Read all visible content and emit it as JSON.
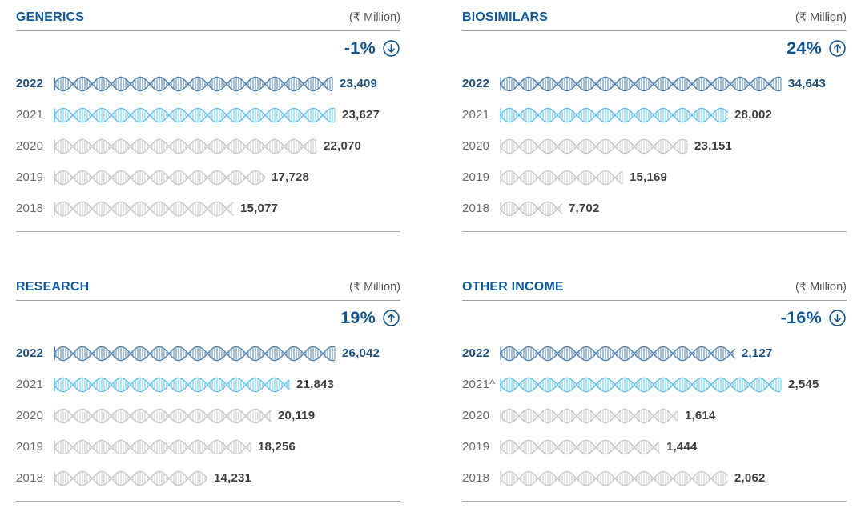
{
  "palette": {
    "title_blue": "#0e5a9c",
    "change_blue": "#11538c",
    "unit_gray": "#575757",
    "divider_gray": "#9e9e9e",
    "foot_divider_gray": "#ababab",
    "current_text": "#1b507e",
    "year_gray": "#6a6a6a",
    "value_gray": "#3e3e3e",
    "helix_current": "#4d7ead",
    "helix_prev": "#5fc3ee",
    "helix_past": "#c7c7c7"
  },
  "chart_data": [
    {
      "type": "bar",
      "orientation": "horizontal",
      "bar_style": "dna-helix",
      "title": "GENERICS",
      "unit": "(₹ Million)",
      "change_label": "-1%",
      "change_direction": "down",
      "categories": [
        "2022",
        "2021",
        "2020",
        "2019",
        "2018"
      ],
      "values": [
        23409,
        23627,
        22070,
        17728,
        15077
      ],
      "value_labels": [
        "23,409",
        "23,627",
        "22,070",
        "17,728",
        "15,077"
      ],
      "row_styles": [
        "current",
        "prev",
        "past",
        "past",
        "past"
      ]
    },
    {
      "type": "bar",
      "orientation": "horizontal",
      "bar_style": "dna-helix",
      "title": "BIOSIMILARS",
      "unit": "(₹ Million)",
      "change_label": "24%",
      "change_direction": "up",
      "categories": [
        "2022",
        "2021",
        "2020",
        "2019",
        "2018"
      ],
      "values": [
        34643,
        28002,
        23151,
        15169,
        7702
      ],
      "value_labels": [
        "34,643",
        "28,002",
        "23,151",
        "15,169",
        "7,702"
      ],
      "row_styles": [
        "current",
        "prev",
        "past",
        "past",
        "past"
      ]
    },
    {
      "type": "bar",
      "orientation": "horizontal",
      "bar_style": "dna-helix",
      "title": "RESEARCH",
      "unit": "(₹ Million)",
      "change_label": "19%",
      "change_direction": "up",
      "categories": [
        "2022",
        "2021",
        "2020",
        "2019",
        "2018"
      ],
      "values": [
        26042,
        21843,
        20119,
        18256,
        14231
      ],
      "value_labels": [
        "26,042",
        "21,843",
        "20,119",
        "18,256",
        "14,231"
      ],
      "row_styles": [
        "current",
        "prev",
        "past",
        "past",
        "past"
      ]
    },
    {
      "type": "bar",
      "orientation": "horizontal",
      "bar_style": "dna-helix",
      "title": "OTHER INCOME",
      "unit": "(₹ Million)",
      "change_label": "-16%",
      "change_direction": "down",
      "categories": [
        "2022",
        "2021^",
        "2020",
        "2019",
        "2018"
      ],
      "values": [
        2127,
        2545,
        1614,
        1444,
        2062
      ],
      "value_labels": [
        "2,127",
        "2,545",
        "1,614",
        "1,444",
        "2,062"
      ],
      "row_styles": [
        "current",
        "prev",
        "past",
        "past",
        "past"
      ]
    }
  ]
}
